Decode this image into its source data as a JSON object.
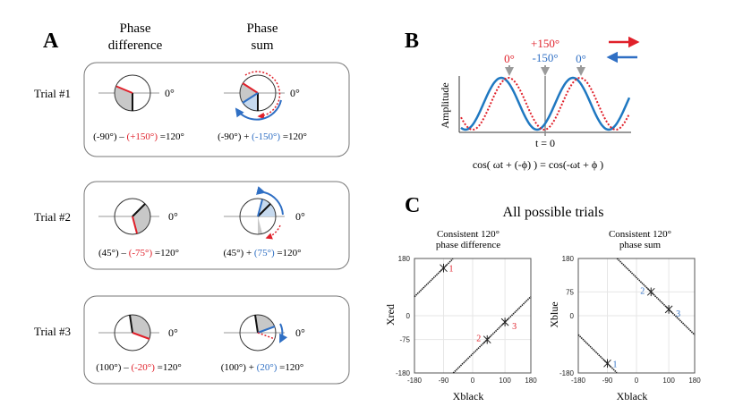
{
  "colors": {
    "red": "#e0202a",
    "blue": "#2f6fc4",
    "grey": "#c8c8c8",
    "wave_blue": "#1f78c1"
  },
  "panelA": {
    "label": "A",
    "header_diff": [
      "Phase",
      "difference"
    ],
    "header_sum": [
      "Phase",
      "sum"
    ],
    "zero_label": "0°",
    "trials": [
      {
        "label": "Trial #1",
        "diff": {
          "p1": "(-90°) – ",
          "p2": "(+150°)",
          "p3": " =120°"
        },
        "sum": {
          "p1": "(-90°) + ",
          "p2": "(-150°)",
          "p3": " =120°"
        }
      },
      {
        "label": "Trial #2",
        "diff": {
          "p1": "(45°) – ",
          "p2": "(-75°)",
          "p3": " =120°"
        },
        "sum": {
          "p1": "(45°) + ",
          "p2": "(75°)",
          "p3": " =120°"
        }
      },
      {
        "label": "Trial #3",
        "diff": {
          "p1": "(100°) – ",
          "p2": "(-20°)",
          "p3": " =120°"
        },
        "sum": {
          "p1": "(100°) + ",
          "p2": "(20°)",
          "p3": " =120°"
        }
      }
    ]
  },
  "panelB": {
    "label": "B",
    "plus150": "+150°",
    "minus150": "-150°",
    "zero_red": "0°",
    "zero_blue": "0°",
    "ylabel": "Amplitude",
    "t0": "t = 0",
    "equation": "cos( ωt + (-ϕ) ) = cos(-ωt + ϕ )"
  },
  "panelC": {
    "label": "C",
    "title": "All possible trials",
    "left": {
      "title": [
        "Consistent 120°",
        "phase difference"
      ],
      "xlabel": "Xblack",
      "ylabel": "Xred",
      "xticks": [
        "-180",
        "-90",
        "0",
        "100",
        "180"
      ],
      "yticks": [
        "180",
        "0",
        "-75",
        "-180"
      ]
    },
    "right": {
      "title": [
        "Consistent 120°",
        "phase sum"
      ],
      "xlabel": "Xblack",
      "ylabel": "Xblue",
      "xticks": [
        "-180",
        "-90",
        "0",
        "100",
        "180"
      ],
      "yticks": [
        "180",
        "75",
        "0",
        "-180"
      ]
    }
  },
  "chart_data": [
    {
      "type": "scatter",
      "title": "Consistent 120° phase difference",
      "xlabel": "Xblack",
      "ylabel": "Xred",
      "xlim": [
        -180,
        180
      ],
      "ylim": [
        -180,
        180
      ],
      "lines": [
        "y = x - 120 (wrapped)"
      ],
      "points": [
        {
          "label": "1",
          "x": -90,
          "y": 150
        },
        {
          "label": "2",
          "x": 45,
          "y": -75
        },
        {
          "label": "3",
          "x": 100,
          "y": -20
        }
      ]
    },
    {
      "type": "scatter",
      "title": "Consistent 120° phase sum",
      "xlabel": "Xblack",
      "ylabel": "Xblue",
      "xlim": [
        -180,
        180
      ],
      "ylim": [
        -180,
        180
      ],
      "lines": [
        "y = 120 - x (wrapped)"
      ],
      "points": [
        {
          "label": "1",
          "x": -90,
          "y": -150
        },
        {
          "label": "2",
          "x": 45,
          "y": 75
        },
        {
          "label": "3",
          "x": 100,
          "y": 20
        }
      ]
    }
  ]
}
